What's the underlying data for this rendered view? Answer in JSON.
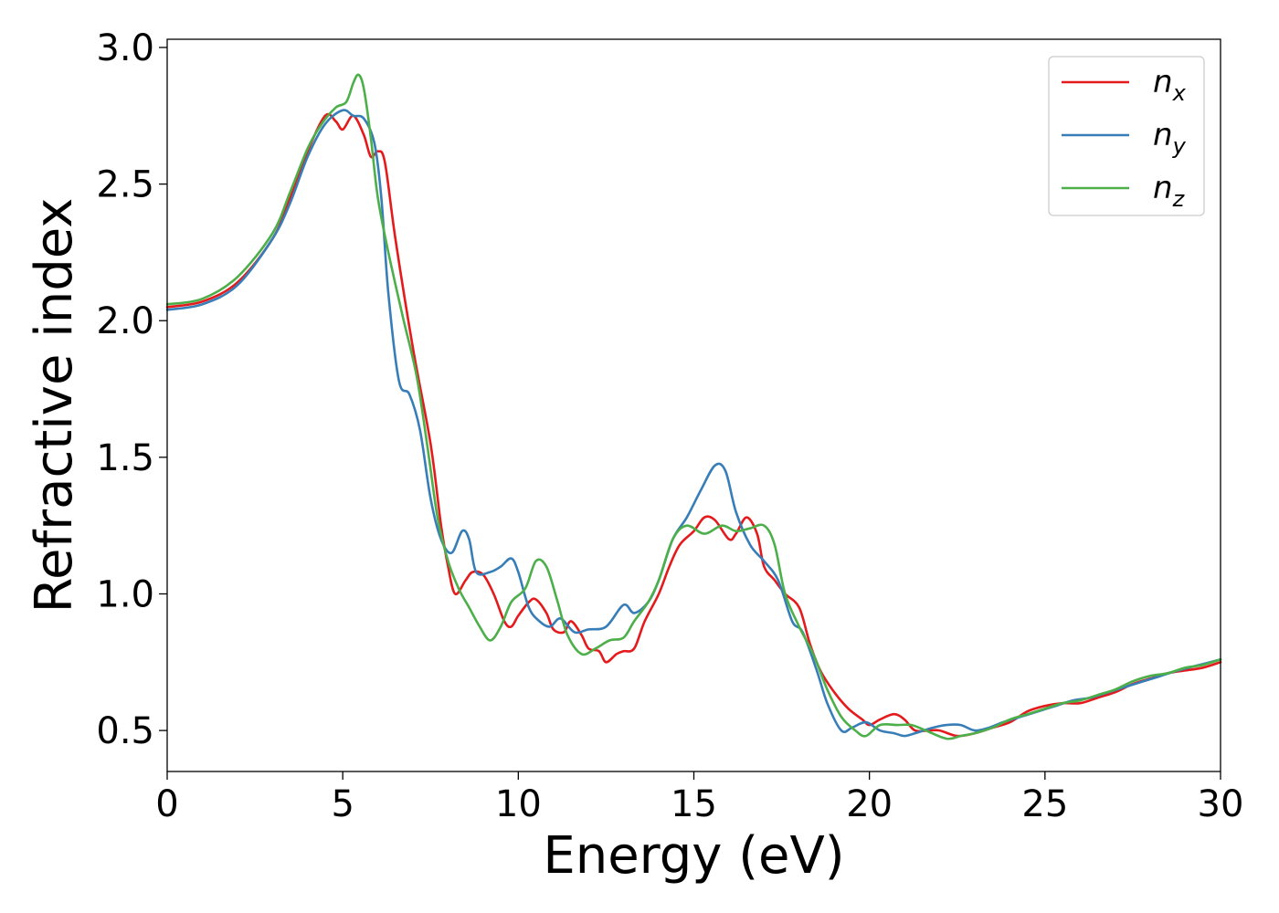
{
  "chart_data": {
    "type": "line",
    "title": "",
    "xlabel": "Energy (eV)",
    "ylabel": "Refractive index",
    "xlim": [
      0,
      30
    ],
    "ylim": [
      0.35,
      3.03
    ],
    "xticks": [
      0,
      5,
      10,
      15,
      20,
      25,
      30
    ],
    "xtick_labels": [
      "0",
      "5",
      "10",
      "15",
      "20",
      "25",
      "30"
    ],
    "yticks": [
      0.5,
      1.0,
      1.5,
      2.0,
      2.5,
      3.0
    ],
    "ytick_labels": [
      "0.5",
      "1.0",
      "1.5",
      "2.0",
      "2.5",
      "3.0"
    ],
    "grid": false,
    "legend_position": "top-right",
    "series": [
      {
        "name": "n",
        "subscript": "x",
        "color": "#e41a1c",
        "points": [
          [
            0,
            2.05
          ],
          [
            1,
            2.07
          ],
          [
            2,
            2.14
          ],
          [
            3,
            2.3
          ],
          [
            3.5,
            2.45
          ],
          [
            4,
            2.62
          ],
          [
            4.5,
            2.75
          ],
          [
            4.8,
            2.73
          ],
          [
            5,
            2.7
          ],
          [
            5.3,
            2.75
          ],
          [
            5.6,
            2.68
          ],
          [
            5.8,
            2.6
          ],
          [
            6,
            2.62
          ],
          [
            6.2,
            2.58
          ],
          [
            6.5,
            2.3
          ],
          [
            7,
            1.9
          ],
          [
            7.5,
            1.55
          ],
          [
            7.8,
            1.25
          ],
          [
            8,
            1.1
          ],
          [
            8.2,
            1.0
          ],
          [
            8.5,
            1.05
          ],
          [
            8.7,
            1.08
          ],
          [
            9,
            1.07
          ],
          [
            9.3,
            1.0
          ],
          [
            9.6,
            0.9
          ],
          [
            9.8,
            0.88
          ],
          [
            10,
            0.92
          ],
          [
            10.3,
            0.97
          ],
          [
            10.5,
            0.98
          ],
          [
            10.8,
            0.93
          ],
          [
            11,
            0.87
          ],
          [
            11.3,
            0.86
          ],
          [
            11.5,
            0.9
          ],
          [
            11.8,
            0.85
          ],
          [
            12,
            0.8
          ],
          [
            12.3,
            0.79
          ],
          [
            12.5,
            0.75
          ],
          [
            12.8,
            0.78
          ],
          [
            13,
            0.79
          ],
          [
            13.3,
            0.8
          ],
          [
            13.6,
            0.9
          ],
          [
            14,
            1.0
          ],
          [
            14.3,
            1.1
          ],
          [
            14.6,
            1.18
          ],
          [
            15,
            1.23
          ],
          [
            15.3,
            1.28
          ],
          [
            15.6,
            1.27
          ],
          [
            16,
            1.2
          ],
          [
            16.2,
            1.22
          ],
          [
            16.5,
            1.28
          ],
          [
            16.8,
            1.22
          ],
          [
            17,
            1.1
          ],
          [
            17.3,
            1.05
          ],
          [
            17.6,
            1.0
          ],
          [
            18,
            0.95
          ],
          [
            18.3,
            0.82
          ],
          [
            18.6,
            0.72
          ],
          [
            19,
            0.64
          ],
          [
            19.4,
            0.58
          ],
          [
            19.8,
            0.54
          ],
          [
            20,
            0.52
          ],
          [
            20.3,
            0.54
          ],
          [
            20.7,
            0.56
          ],
          [
            21,
            0.54
          ],
          [
            21.3,
            0.5
          ],
          [
            21.7,
            0.5
          ],
          [
            22,
            0.5
          ],
          [
            22.5,
            0.48
          ],
          [
            23,
            0.49
          ],
          [
            23.5,
            0.51
          ],
          [
            24,
            0.53
          ],
          [
            24.5,
            0.57
          ],
          [
            25,
            0.59
          ],
          [
            25.5,
            0.6
          ],
          [
            26,
            0.6
          ],
          [
            26.5,
            0.62
          ],
          [
            27,
            0.64
          ],
          [
            27.5,
            0.67
          ],
          [
            28,
            0.69
          ],
          [
            28.5,
            0.71
          ],
          [
            29,
            0.72
          ],
          [
            29.5,
            0.73
          ],
          [
            30,
            0.75
          ]
        ]
      },
      {
        "name": "n",
        "subscript": "y",
        "color": "#377eb8",
        "points": [
          [
            0,
            2.04
          ],
          [
            1,
            2.06
          ],
          [
            2,
            2.13
          ],
          [
            3,
            2.3
          ],
          [
            3.5,
            2.43
          ],
          [
            4,
            2.6
          ],
          [
            4.5,
            2.72
          ],
          [
            5,
            2.77
          ],
          [
            5.3,
            2.75
          ],
          [
            5.6,
            2.74
          ],
          [
            5.9,
            2.65
          ],
          [
            6.1,
            2.45
          ],
          [
            6.3,
            2.1
          ],
          [
            6.6,
            1.78
          ],
          [
            6.9,
            1.73
          ],
          [
            7.2,
            1.6
          ],
          [
            7.5,
            1.35
          ],
          [
            7.8,
            1.2
          ],
          [
            8.1,
            1.15
          ],
          [
            8.4,
            1.23
          ],
          [
            8.6,
            1.2
          ],
          [
            8.8,
            1.08
          ],
          [
            9.2,
            1.08
          ],
          [
            9.5,
            1.1
          ],
          [
            9.8,
            1.13
          ],
          [
            10,
            1.08
          ],
          [
            10.3,
            0.95
          ],
          [
            10.6,
            0.9
          ],
          [
            10.9,
            0.88
          ],
          [
            11.2,
            0.91
          ],
          [
            11.6,
            0.86
          ],
          [
            12,
            0.87
          ],
          [
            12.5,
            0.88
          ],
          [
            13,
            0.96
          ],
          [
            13.3,
            0.93
          ],
          [
            13.7,
            0.97
          ],
          [
            14,
            1.05
          ],
          [
            14.4,
            1.2
          ],
          [
            14.8,
            1.28
          ],
          [
            15.2,
            1.38
          ],
          [
            15.6,
            1.47
          ],
          [
            15.9,
            1.45
          ],
          [
            16.2,
            1.3
          ],
          [
            16.6,
            1.18
          ],
          [
            17,
            1.12
          ],
          [
            17.4,
            1.05
          ],
          [
            17.8,
            0.9
          ],
          [
            18.1,
            0.86
          ],
          [
            18.5,
            0.72
          ],
          [
            18.8,
            0.6
          ],
          [
            19.2,
            0.5
          ],
          [
            19.5,
            0.51
          ],
          [
            19.9,
            0.53
          ],
          [
            20.3,
            0.5
          ],
          [
            20.7,
            0.49
          ],
          [
            21,
            0.48
          ],
          [
            21.3,
            0.49
          ],
          [
            21.8,
            0.51
          ],
          [
            22.2,
            0.52
          ],
          [
            22.6,
            0.52
          ],
          [
            23,
            0.5
          ],
          [
            23.4,
            0.51
          ],
          [
            23.8,
            0.53
          ],
          [
            24.3,
            0.55
          ],
          [
            24.8,
            0.57
          ],
          [
            25.3,
            0.59
          ],
          [
            25.8,
            0.61
          ],
          [
            26.3,
            0.62
          ],
          [
            26.8,
            0.64
          ],
          [
            27.3,
            0.66
          ],
          [
            27.8,
            0.68
          ],
          [
            28.3,
            0.7
          ],
          [
            28.8,
            0.72
          ],
          [
            29.4,
            0.74
          ],
          [
            30,
            0.76
          ]
        ]
      },
      {
        "name": "n",
        "subscript": "z",
        "color": "#4daf4a",
        "points": [
          [
            0,
            2.06
          ],
          [
            1,
            2.08
          ],
          [
            2,
            2.16
          ],
          [
            3,
            2.32
          ],
          [
            3.5,
            2.47
          ],
          [
            4,
            2.63
          ],
          [
            4.4,
            2.72
          ],
          [
            4.8,
            2.78
          ],
          [
            5.1,
            2.8
          ],
          [
            5.3,
            2.87
          ],
          [
            5.45,
            2.9
          ],
          [
            5.6,
            2.85
          ],
          [
            5.8,
            2.67
          ],
          [
            6,
            2.45
          ],
          [
            6.3,
            2.25
          ],
          [
            6.7,
            2.02
          ],
          [
            7.1,
            1.8
          ],
          [
            7.4,
            1.55
          ],
          [
            7.7,
            1.28
          ],
          [
            8,
            1.12
          ],
          [
            8.3,
            1.02
          ],
          [
            8.6,
            0.95
          ],
          [
            8.9,
            0.88
          ],
          [
            9.2,
            0.83
          ],
          [
            9.5,
            0.88
          ],
          [
            9.8,
            0.97
          ],
          [
            10.2,
            1.02
          ],
          [
            10.5,
            1.12
          ],
          [
            10.8,
            1.1
          ],
          [
            11.1,
            0.98
          ],
          [
            11.4,
            0.85
          ],
          [
            11.8,
            0.78
          ],
          [
            12.2,
            0.8
          ],
          [
            12.6,
            0.83
          ],
          [
            13,
            0.84
          ],
          [
            13.3,
            0.9
          ],
          [
            13.7,
            0.97
          ],
          [
            14,
            1.05
          ],
          [
            14.4,
            1.2
          ],
          [
            14.8,
            1.25
          ],
          [
            15.3,
            1.22
          ],
          [
            15.8,
            1.25
          ],
          [
            16.2,
            1.23
          ],
          [
            16.6,
            1.24
          ],
          [
            17,
            1.25
          ],
          [
            17.3,
            1.18
          ],
          [
            17.6,
            1.0
          ],
          [
            18,
            0.88
          ],
          [
            18.4,
            0.78
          ],
          [
            18.8,
            0.65
          ],
          [
            19.2,
            0.55
          ],
          [
            19.6,
            0.5
          ],
          [
            19.9,
            0.48
          ],
          [
            20.3,
            0.52
          ],
          [
            20.8,
            0.52
          ],
          [
            21.2,
            0.52
          ],
          [
            21.6,
            0.5
          ],
          [
            22.2,
            0.47
          ],
          [
            22.6,
            0.48
          ],
          [
            23,
            0.49
          ],
          [
            23.5,
            0.51
          ],
          [
            24,
            0.54
          ],
          [
            24.5,
            0.56
          ],
          [
            25,
            0.58
          ],
          [
            25.5,
            0.6
          ],
          [
            26,
            0.61
          ],
          [
            26.5,
            0.63
          ],
          [
            27,
            0.65
          ],
          [
            27.5,
            0.68
          ],
          [
            28,
            0.7
          ],
          [
            28.5,
            0.71
          ],
          [
            29,
            0.73
          ],
          [
            29.5,
            0.74
          ],
          [
            30,
            0.76
          ]
        ]
      }
    ]
  }
}
